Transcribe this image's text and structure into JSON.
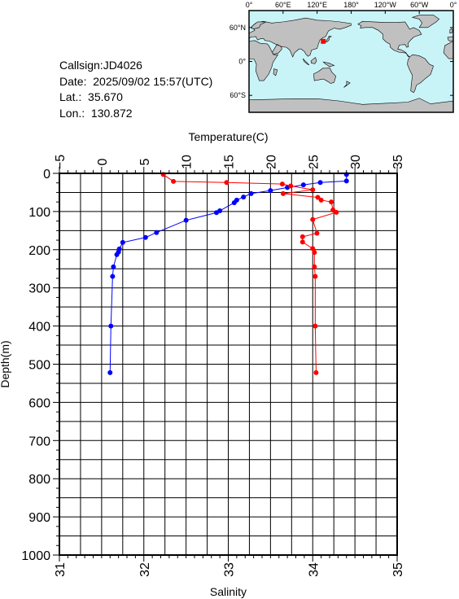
{
  "station": {
    "callsign": "Callsign:JD4026",
    "date_label": "Date:",
    "date": "2025/09/02 15:57(UTC)",
    "lat_label": "Lat.:",
    "lat": "35.670",
    "lon_label": "Lon.:",
    "lon": "130.872"
  },
  "map": {
    "lon_labels": [
      "0°",
      "60°E",
      "120°E",
      "180°",
      "120°W",
      "60°W",
      "0°"
    ],
    "lat_labels": [
      "60°N",
      "0°",
      "60°S"
    ],
    "ocean_color": "#c8f4f8",
    "land_color": "#c0c0c0",
    "marker_color": "#ff0000",
    "marker_lon": 130.872,
    "marker_lat": 35.67
  },
  "chart_data": {
    "type": "line",
    "ylabel": "Depth(m)",
    "ylim": [
      0,
      1000
    ],
    "y_inverted": true,
    "yticks": [
      "0",
      "100",
      "200",
      "300",
      "400",
      "500",
      "600",
      "700",
      "800",
      "900",
      "1000"
    ],
    "temperature_axis": {
      "label": "Temperature(C)",
      "lim": [
        -5,
        35
      ],
      "ticks": [
        "−5",
        "0",
        "5",
        "10",
        "15",
        "20",
        "25",
        "30",
        "35"
      ],
      "position": "top"
    },
    "salinity_axis": {
      "label": "Salinity",
      "lim": [
        31,
        35
      ],
      "ticks": [
        "31",
        "32",
        "33",
        "34",
        "35"
      ],
      "position": "bottom"
    },
    "grid": true,
    "series": [
      {
        "axis": "temperature",
        "color": "#0000ff",
        "points": [
          {
            "x": 29.0,
            "y": 3
          },
          {
            "x": 29.0,
            "y": 20
          },
          {
            "x": 25.9,
            "y": 24
          },
          {
            "x": 23.9,
            "y": 30
          },
          {
            "x": 22.0,
            "y": 37
          },
          {
            "x": 20.0,
            "y": 45
          },
          {
            "x": 17.7,
            "y": 53
          },
          {
            "x": 16.8,
            "y": 62
          },
          {
            "x": 16.0,
            "y": 70
          },
          {
            "x": 15.7,
            "y": 77
          },
          {
            "x": 14.0,
            "y": 98
          },
          {
            "x": 13.6,
            "y": 103
          },
          {
            "x": 10.0,
            "y": 123
          },
          {
            "x": 6.5,
            "y": 155
          },
          {
            "x": 5.2,
            "y": 168
          },
          {
            "x": 2.5,
            "y": 181
          },
          {
            "x": 2.1,
            "y": 198
          },
          {
            "x": 2.0,
            "y": 206
          },
          {
            "x": 1.8,
            "y": 213
          },
          {
            "x": 1.4,
            "y": 245
          },
          {
            "x": 1.3,
            "y": 270
          },
          {
            "x": 1.1,
            "y": 400
          },
          {
            "x": 1.0,
            "y": 522
          }
        ]
      },
      {
        "axis": "salinity",
        "color": "#ff0000",
        "points": [
          {
            "x": 32.23,
            "y": 3
          },
          {
            "x": 32.35,
            "y": 21
          },
          {
            "x": 32.98,
            "y": 24
          },
          {
            "x": 33.64,
            "y": 28
          },
          {
            "x": 33.74,
            "y": 33
          },
          {
            "x": 34.0,
            "y": 43
          },
          {
            "x": 33.65,
            "y": 53
          },
          {
            "x": 34.06,
            "y": 63
          },
          {
            "x": 34.1,
            "y": 70
          },
          {
            "x": 34.22,
            "y": 75
          },
          {
            "x": 34.24,
            "y": 96
          },
          {
            "x": 34.28,
            "y": 102
          },
          {
            "x": 34.0,
            "y": 121
          },
          {
            "x": 34.05,
            "y": 157
          },
          {
            "x": 33.88,
            "y": 166
          },
          {
            "x": 33.88,
            "y": 180
          },
          {
            "x": 34.0,
            "y": 197
          },
          {
            "x": 34.02,
            "y": 207
          },
          {
            "x": 34.02,
            "y": 245
          },
          {
            "x": 34.03,
            "y": 270
          },
          {
            "x": 34.03,
            "y": 400
          },
          {
            "x": 34.04,
            "y": 522
          }
        ]
      }
    ]
  }
}
